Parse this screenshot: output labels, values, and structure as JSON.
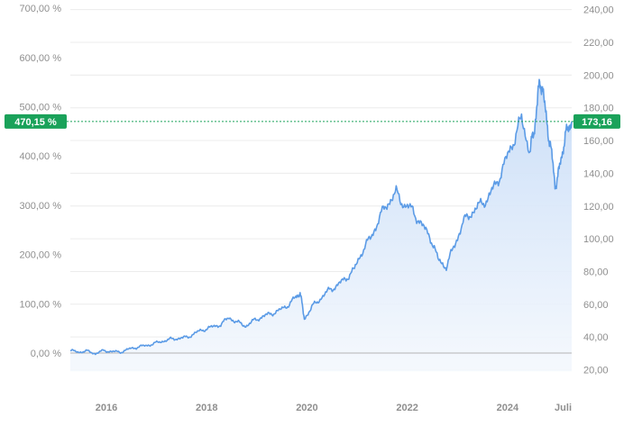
{
  "chart_data": {
    "type": "area",
    "x_ticks": [
      "2016",
      "2018",
      "2020",
      "2022",
      "2024",
      "Juli"
    ],
    "y_left_ticks": [
      "0,00 %",
      "100,00 %",
      "200,00 %",
      "300,00 %",
      "400,00 %",
      "500,00 %",
      "600,00 %",
      "700,00 %"
    ],
    "y_right_ticks": [
      "20,00",
      "40,00",
      "60,00",
      "80,00",
      "100,00",
      "120,00",
      "140,00",
      "160,00",
      "180,00",
      "200,00",
      "220,00",
      "240,00"
    ],
    "ylim_percent": [
      -100,
      700
    ],
    "ylim_price": [
      20,
      240
    ],
    "baseline_percent": 0,
    "current": {
      "percent_label": "470,15 %",
      "price_label": "173,16",
      "percent": 470.15,
      "price": 173.16
    },
    "grid": true,
    "colors": {
      "line": "#5b9be6",
      "fill_top": "#c7dcf7",
      "fill_bottom": "#f4f8fd",
      "badge": "#1aa25a",
      "grid": "#ececec",
      "baseline": "#b3b3b3"
    },
    "series": [
      {
        "points": [
          [
            "2015-07",
            5
          ],
          [
            "2015-09",
            2
          ],
          [
            "2015-11",
            4
          ],
          [
            "2016-01",
            -1
          ],
          [
            "2016-03",
            5
          ],
          [
            "2016-05",
            3
          ],
          [
            "2016-07",
            2
          ],
          [
            "2016-09",
            8
          ],
          [
            "2016-11",
            12
          ],
          [
            "2017-01",
            15
          ],
          [
            "2017-03",
            19
          ],
          [
            "2017-05",
            24
          ],
          [
            "2017-07",
            28
          ],
          [
            "2017-09",
            30
          ],
          [
            "2017-11",
            32
          ],
          [
            "2018-01",
            41
          ],
          [
            "2018-03",
            48
          ],
          [
            "2018-05",
            53
          ],
          [
            "2018-07",
            58
          ],
          [
            "2018-09",
            72
          ],
          [
            "2018-11",
            62
          ],
          [
            "2019-01",
            55
          ],
          [
            "2019-03",
            66
          ],
          [
            "2019-05",
            74
          ],
          [
            "2019-07",
            80
          ],
          [
            "2019-09",
            86
          ],
          [
            "2019-11",
            97
          ],
          [
            "2020-01",
            113
          ],
          [
            "2020-02",
            123
          ],
          [
            "2020-03",
            70
          ],
          [
            "2020-05",
            95
          ],
          [
            "2020-07",
            112
          ],
          [
            "2020-09",
            128
          ],
          [
            "2020-11",
            138
          ],
          [
            "2021-01",
            152
          ],
          [
            "2021-03",
            170
          ],
          [
            "2021-05",
            210
          ],
          [
            "2021-07",
            235
          ],
          [
            "2021-09",
            275
          ],
          [
            "2021-11",
            305
          ],
          [
            "2022-01",
            325
          ],
          [
            "2022-03",
            300
          ],
          [
            "2022-05",
            290
          ],
          [
            "2022-07",
            260
          ],
          [
            "2022-09",
            240
          ],
          [
            "2022-11",
            190
          ],
          [
            "2023-01",
            175
          ],
          [
            "2023-03",
            220
          ],
          [
            "2023-05",
            265
          ],
          [
            "2023-07",
            285
          ],
          [
            "2023-09",
            300
          ],
          [
            "2023-11",
            315
          ],
          [
            "2024-01",
            345
          ],
          [
            "2024-03",
            385
          ],
          [
            "2024-05",
            430
          ],
          [
            "2024-07",
            475
          ],
          [
            "2024-09",
            410
          ],
          [
            "2024-10",
            450
          ],
          [
            "2024-11",
            530
          ],
          [
            "2024-12",
            550
          ],
          [
            "2025-01",
            465
          ],
          [
            "2025-02",
            420
          ],
          [
            "2025-03",
            340
          ],
          [
            "2025-04",
            370
          ],
          [
            "2025-05",
            420
          ],
          [
            "2025-06",
            455
          ],
          [
            "2025-07",
            470.15
          ]
        ]
      }
    ]
  }
}
